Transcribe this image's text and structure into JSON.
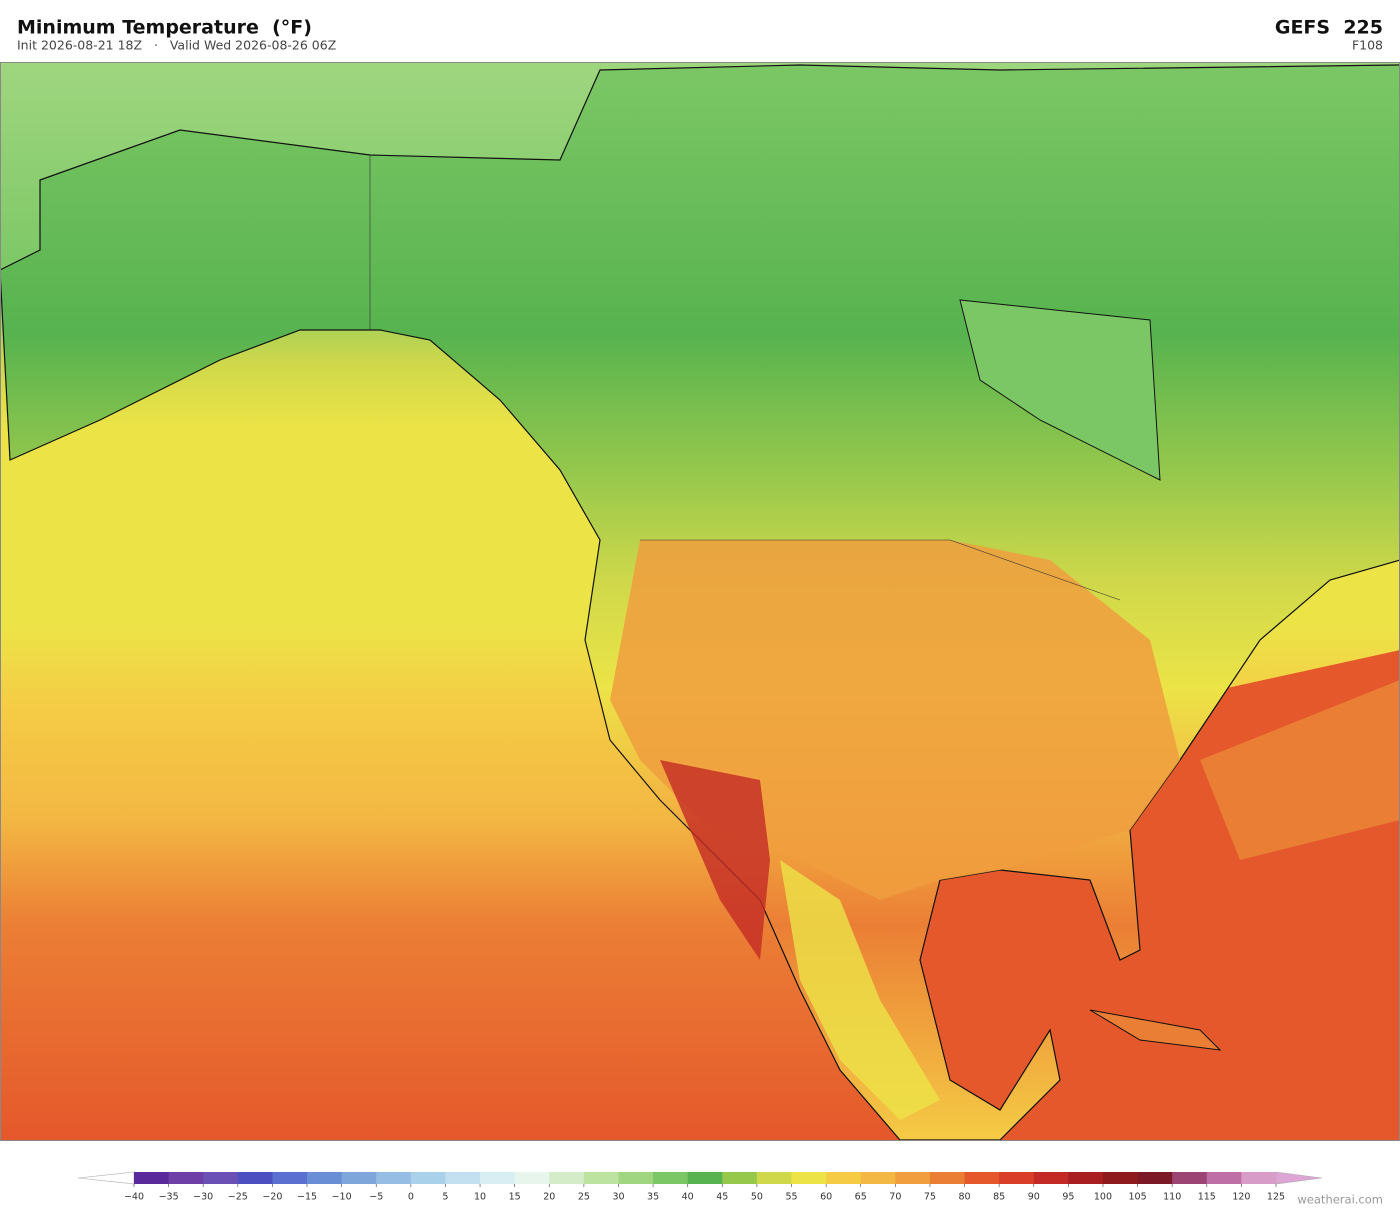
{
  "header": {
    "title": "Minimum Temperature  (°F)",
    "subtitle": "Init 2026-08-21 18Z   ·   Valid Wed 2026-08-26 06Z",
    "model": "GEFS  225",
    "forecast_hour": "F108"
  },
  "colorbar": {
    "ticks": [
      {
        "value": -40,
        "label": "−40"
      },
      {
        "value": -35,
        "label": "−35"
      },
      {
        "value": -30,
        "label": "−30"
      },
      {
        "value": -25,
        "label": "−25"
      },
      {
        "value": -20,
        "label": "−20"
      },
      {
        "value": -15,
        "label": "−15"
      },
      {
        "value": -10,
        "label": "−10"
      },
      {
        "value": -5,
        "label": "−5"
      },
      0,
      5,
      10,
      15,
      20,
      25,
      30,
      35,
      40,
      45,
      50,
      55,
      60,
      65,
      70,
      75,
      80,
      85,
      90,
      95,
      100,
      105,
      110,
      115,
      120,
      125
    ],
    "colors": [
      "#5b2a9a",
      "#6f3fa8",
      "#6a4fb5",
      "#4c4fc0",
      "#5a6fd0",
      "#6a8ed6",
      "#7ea6da",
      "#96bde3",
      "#a9d1ea",
      "#c2e0ef",
      "#d9eef3",
      "#e8f5ec",
      "#d4ecc8",
      "#bde3a0",
      "#9fd67f",
      "#7cc765",
      "#57b34f",
      "#96c84c",
      "#cfd84a",
      "#ece447",
      "#f5cb45",
      "#f3b843",
      "#f09e3e",
      "#eb7e35",
      "#e5582b",
      "#d93f28",
      "#c42a25",
      "#a81e21",
      "#8e1a1e",
      "#7b1a26",
      "#9c4575",
      "#bd6fa6",
      "#d89cc9"
    ],
    "under_color": "#ffffff",
    "over_color": "#dca5d3"
  },
  "watermark": "weatherai.com"
}
